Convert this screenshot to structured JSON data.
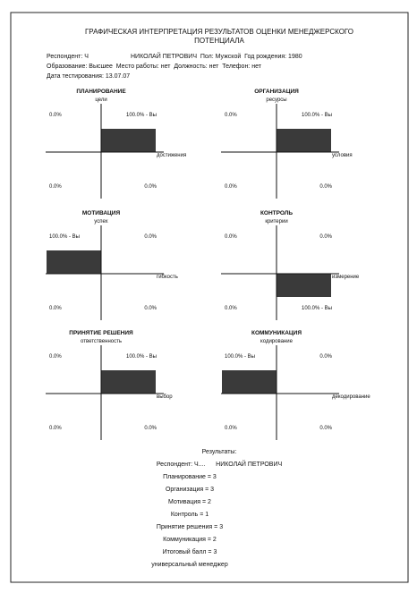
{
  "header": {
    "title": [
      "ГРАФИЧЕСКАЯ ИНТЕРПРЕТАЦИЯ РЕЗУЛЬТАТОВ ОЦЕНКИ МЕНЕДЖЕРСКОГО",
      "ПОТЕНЦИАЛА"
    ],
    "respondent": "Респондент: Ч",
    "name_line": "НИКОЛАЙ ПЕТРОВИЧ  Пол: Мужской  Год рождения: 1980",
    "education_line": "Образование: Высшее  Место работы: нет  Должность: нет  Телефон: нет",
    "date_line": "Дата тестирования: 13.07.07"
  },
  "charts": [
    {
      "title": "ПЛАНИРОВАНИЕ",
      "y_label": "цели",
      "x_label": "достижения",
      "quadrants": {
        "top_left": "0.0%",
        "top_right": "100.0% - Вы",
        "bottom_left": "0.0%",
        "bottom_right": "0.0%"
      },
      "filled": "top_right"
    },
    {
      "title": "ОРГАНИЗАЦИЯ",
      "y_label": "ресурсы",
      "x_label": "условия",
      "quadrants": {
        "top_left": "0.0%",
        "top_right": "100.0% - Вы",
        "bottom_left": "0.0%",
        "bottom_right": "0.0%"
      },
      "filled": "top_right"
    },
    {
      "title": "МОТИВАЦИЯ",
      "y_label": "успех",
      "x_label": "гибкость",
      "quadrants": {
        "top_left": "100.0% - Вы",
        "top_right": "0.0%",
        "bottom_left": "0.0%",
        "bottom_right": "0.0%"
      },
      "filled": "top_left"
    },
    {
      "title": "КОНТРОЛЬ",
      "y_label": "критерии",
      "x_label": "измерение",
      "quadrants": {
        "top_left": "0.0%",
        "top_right": "0.0%",
        "bottom_left": "0.0%",
        "bottom_right": "100.0% - Вы"
      },
      "filled": "bottom_right"
    },
    {
      "title": "ПРИНЯТИЕ РЕШЕНИЯ",
      "y_label": "ответственность",
      "x_label": "выбор",
      "quadrants": {
        "top_left": "0.0%",
        "top_right": "100.0% - Вы",
        "bottom_left": "0.0%",
        "bottom_right": "0.0%"
      },
      "filled": "top_right"
    },
    {
      "title": "КОММУНИКАЦИЯ",
      "y_label": "кодирование",
      "x_label": "декодирование",
      "quadrants": {
        "top_left": "100.0% - Вы",
        "top_right": "0.0%",
        "bottom_left": "0.0%",
        "bottom_right": "0.0%"
      },
      "filled": "top_left"
    }
  ],
  "results": {
    "heading": "Результаты:",
    "respondent": "Респондент: Ч....      НИКОЛАЙ ПЕТРОВИЧ",
    "lines": [
      "Планирование = 3",
      "Организация = 3",
      "Мотивация = 2",
      "Контроль = 1",
      "Принятие решения = 3",
      "Коммуникация = 2",
      "Итоговый балл = 3",
      "универсальный менеджер"
    ]
  }
}
